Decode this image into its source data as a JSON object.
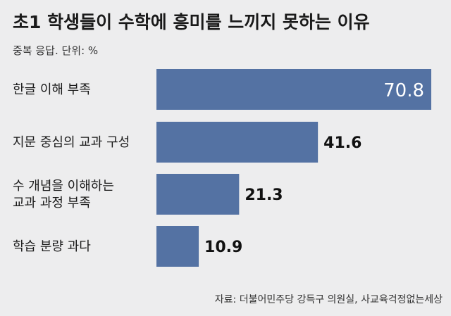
{
  "chart_data": {
    "type": "bar",
    "orientation": "horizontal",
    "title": "초1 학생들이 수학에 흥미를 느끼지 못하는 이유",
    "subtitle": "중복 응답. 단위: %",
    "categories": [
      [
        "한글 이해 부족"
      ],
      [
        "지문 중심의 교과 구성"
      ],
      [
        "수 개념을 이해하는",
        "교과 과정 부족"
      ],
      [
        "학습 분량 과다"
      ]
    ],
    "values": [
      70.8,
      41.6,
      21.3,
      10.9
    ],
    "value_labels": [
      "70.8",
      "41.6",
      "21.3",
      "10.9"
    ],
    "xlim": [
      0,
      70.8
    ],
    "grid": false,
    "source": "자료: 더불어민주당 강득구 의원실, 사교육걱정없는세상",
    "colors": {
      "bar": "#5472a3",
      "background": "#ededee"
    }
  }
}
